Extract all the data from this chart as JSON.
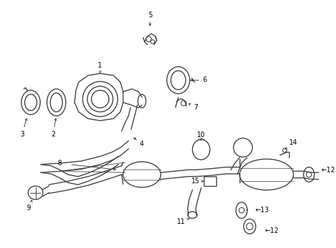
{
  "background_color": "#ffffff",
  "line_color": "#404040",
  "text_color": "#000000",
  "lw": 1.0,
  "figsize": [
    4.89,
    3.6
  ],
  "dpi": 100
}
